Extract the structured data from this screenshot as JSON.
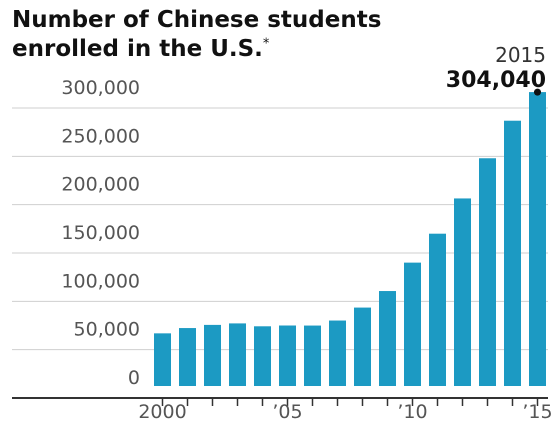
{
  "title_line1": "Number of Chinese students",
  "title_line2": "enrolled in the U.S.",
  "title_footnote_mark": "*",
  "colors": {
    "bar": "#1c9ac3",
    "grid": "#cfcfcf",
    "axis": "#333333",
    "marker": "#111111"
  },
  "chart_data": {
    "type": "bar",
    "categories": [
      "2000",
      "2001",
      "2002",
      "2003",
      "2004",
      "2005",
      "2006",
      "2007",
      "2008",
      "2009",
      "2010",
      "2011",
      "2012",
      "2013",
      "2014",
      "2015"
    ],
    "values": [
      54466,
      59939,
      63211,
      64757,
      61765,
      62582,
      62523,
      67723,
      81127,
      98235,
      127628,
      157558,
      194029,
      235597,
      274439,
      304040
    ],
    "ylim": [
      0,
      310000
    ],
    "yticks": [
      {
        "value": 0,
        "label": "0"
      },
      {
        "value": 50000,
        "label": "50,000"
      },
      {
        "value": 100000,
        "label": "100,000"
      },
      {
        "value": 150000,
        "label": "150,000"
      },
      {
        "value": 200000,
        "label": "200,000"
      },
      {
        "value": 250000,
        "label": "250,000"
      },
      {
        "value": 300000,
        "label": "300,000"
      }
    ],
    "xticks": [
      {
        "category": "2000",
        "label": "2000"
      },
      {
        "category": "2005",
        "label": "’05"
      },
      {
        "category": "2010",
        "label": "’10"
      },
      {
        "category": "2015",
        "label": "’15"
      }
    ],
    "grid": true,
    "annotation": {
      "category": "2015",
      "year_label": "2015",
      "value_label": "304,040"
    }
  }
}
